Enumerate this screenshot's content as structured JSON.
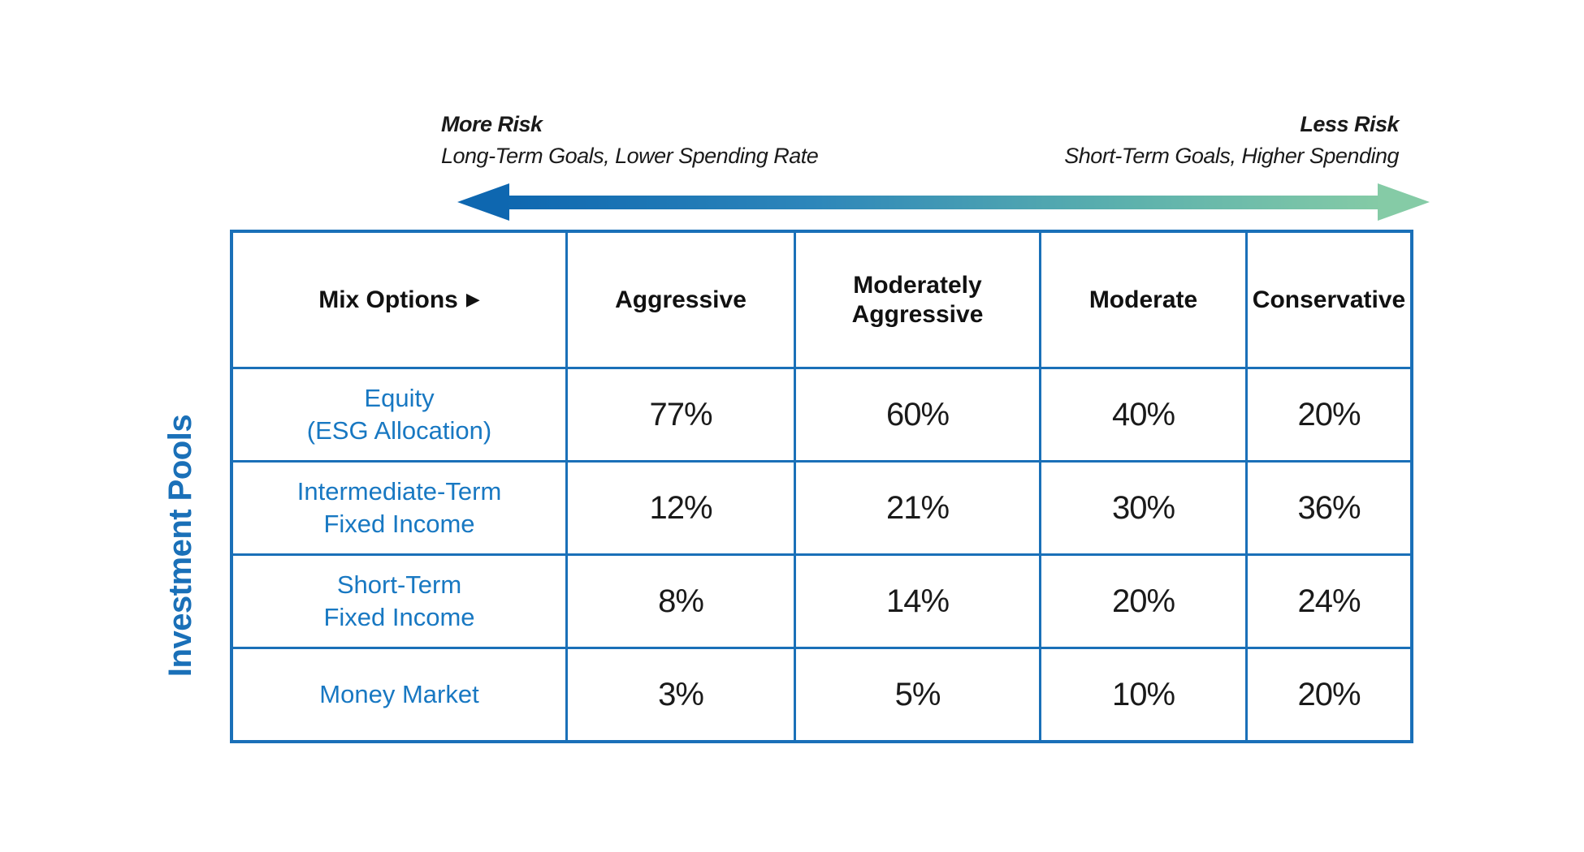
{
  "risk_scale": {
    "left": {
      "title": "More Risk",
      "subtitle": "Long-Term Goals, Lower Spending Rate"
    },
    "right": {
      "title": "Less Risk",
      "subtitle": "Short-Term Goals, Higher Spending"
    }
  },
  "axis_label": "Investment Pools",
  "table": {
    "corner_label": "Mix Options",
    "corner_arrow": "▶",
    "columns": [
      "Aggressive",
      "Moderately Aggressive",
      "Moderate",
      "Conservative"
    ],
    "rows": [
      {
        "label_lines": [
          "Equity",
          "(ESG Allocation)"
        ],
        "values": [
          "77%",
          "60%",
          "40%",
          "20%"
        ]
      },
      {
        "label_lines": [
          "Intermediate-Term",
          "Fixed Income"
        ],
        "values": [
          "12%",
          "21%",
          "30%",
          "36%"
        ]
      },
      {
        "label_lines": [
          "Short-Term",
          "Fixed Income"
        ],
        "values": [
          "8%",
          "14%",
          "20%",
          "24%"
        ]
      },
      {
        "label_lines": [
          "Money Market"
        ],
        "values": [
          "3%",
          "5%",
          "10%",
          "20%"
        ]
      }
    ]
  },
  "colors": {
    "table_border_blue": "#1a70b8",
    "row_label_blue": "#1878c2",
    "axis_label_blue": "#1a70b8",
    "arrow_more_risk_blue": "#0e67b0",
    "arrow_less_risk_green": "#85cba6",
    "header_text": "#111111",
    "value_text": "#1a1a1a"
  },
  "chart_data": {
    "type": "table",
    "title": "",
    "column_axis_label": "Mix Options",
    "row_axis_label": "Investment Pools",
    "categories": [
      "Aggressive",
      "Moderately Aggressive",
      "Moderate",
      "Conservative"
    ],
    "series": [
      {
        "name": "Equity (ESG Allocation)",
        "values": [
          77,
          60,
          40,
          20
        ]
      },
      {
        "name": "Intermediate-Term Fixed Income",
        "values": [
          12,
          21,
          30,
          36
        ]
      },
      {
        "name": "Short-Term Fixed Income",
        "values": [
          8,
          14,
          20,
          24
        ]
      },
      {
        "name": "Money Market",
        "values": [
          3,
          5,
          10,
          20
        ]
      }
    ],
    "unit": "%",
    "annotations": [
      "More Risk — Long-Term Goals, Lower Spending Rate (left)",
      "Less Risk — Short-Term Goals, Higher Spending (right)"
    ],
    "legend_position": "none",
    "grid": true
  }
}
